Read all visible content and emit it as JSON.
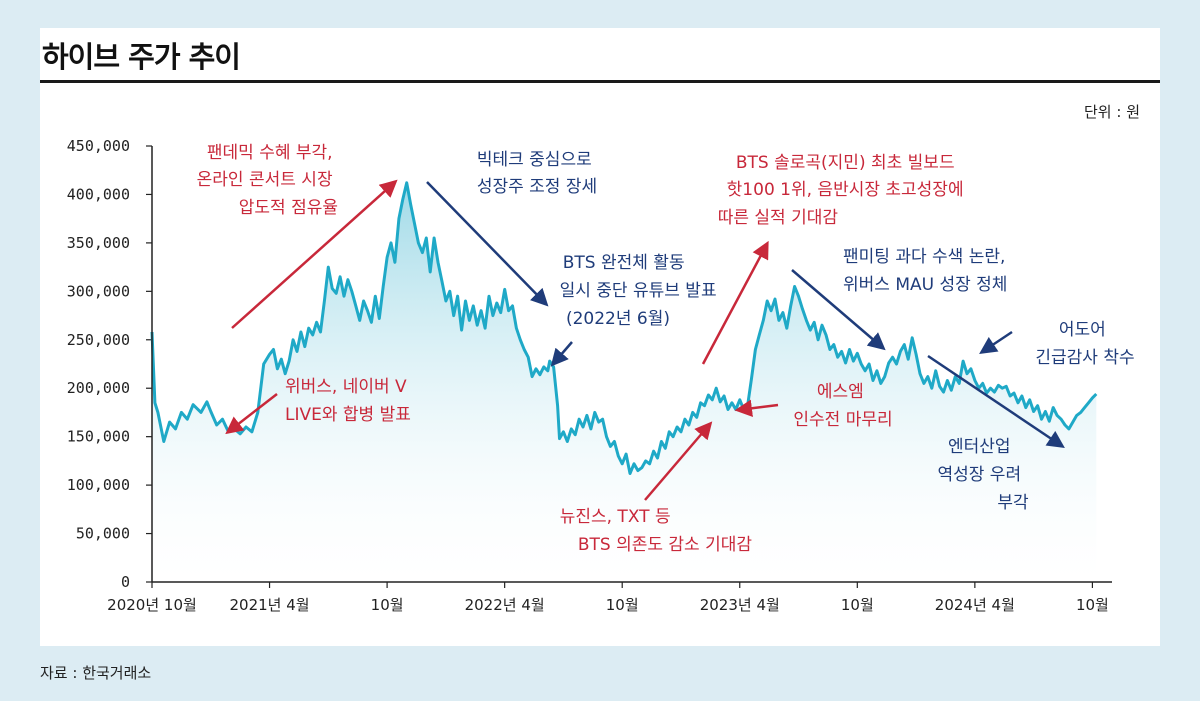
{
  "title": "하이브 주가 추이",
  "unit": "단위 : 원",
  "source": "자료 : 한국거래소",
  "colors": {
    "line": "#1fa9c7",
    "area_top": "#8fd3e3",
    "red": "#c8283a",
    "blue": "#1f3c7a",
    "axis": "#222222"
  },
  "chart_data": {
    "type": "area",
    "title": "하이브 주가 추이",
    "ylabel": "단위 : 원",
    "ylim": [
      0,
      450000
    ],
    "yticks": [
      0,
      50000,
      100000,
      150000,
      200000,
      250000,
      300000,
      350000,
      400000,
      450000
    ],
    "ytick_labels": [
      "0",
      "50,000",
      "100,000",
      "150,000",
      "200,000",
      "250,000",
      "300,000",
      "350,000",
      "400,000",
      "450,000"
    ],
    "x_range_months": [
      0,
      49
    ],
    "xticks": [
      {
        "m": 0,
        "label": "2020년 10월"
      },
      {
        "m": 6,
        "label": "2021년 4월"
      },
      {
        "m": 12,
        "label": "10월"
      },
      {
        "m": 18,
        "label": "2022년 4월"
      },
      {
        "m": 24,
        "label": "10월"
      },
      {
        "m": 30,
        "label": "2023년 4월"
      },
      {
        "m": 36,
        "label": "10월"
      },
      {
        "m": 42,
        "label": "2024년 4월"
      },
      {
        "m": 48,
        "label": "10월"
      }
    ],
    "series": [
      {
        "name": "하이브",
        "points": [
          [
            0.0,
            258000
          ],
          [
            0.15,
            185000
          ],
          [
            0.3,
            175000
          ],
          [
            0.6,
            145000
          ],
          [
            0.9,
            165000
          ],
          [
            1.2,
            158000
          ],
          [
            1.5,
            175000
          ],
          [
            1.8,
            168000
          ],
          [
            2.1,
            183000
          ],
          [
            2.5,
            175000
          ],
          [
            2.8,
            186000
          ],
          [
            3.0,
            176000
          ],
          [
            3.3,
            162000
          ],
          [
            3.6,
            168000
          ],
          [
            3.9,
            155000
          ],
          [
            4.2,
            158000
          ],
          [
            4.5,
            153000
          ],
          [
            4.8,
            160000
          ],
          [
            5.1,
            155000
          ],
          [
            5.4,
            175000
          ],
          [
            5.7,
            225000
          ],
          [
            6.0,
            235000
          ],
          [
            6.2,
            240000
          ],
          [
            6.4,
            220000
          ],
          [
            6.6,
            230000
          ],
          [
            6.8,
            215000
          ],
          [
            7.0,
            228000
          ],
          [
            7.2,
            250000
          ],
          [
            7.4,
            238000
          ],
          [
            7.6,
            258000
          ],
          [
            7.8,
            243000
          ],
          [
            8.0,
            262000
          ],
          [
            8.2,
            255000
          ],
          [
            8.4,
            268000
          ],
          [
            8.6,
            258000
          ],
          [
            8.8,
            290000
          ],
          [
            9.0,
            325000
          ],
          [
            9.2,
            303000
          ],
          [
            9.4,
            298000
          ],
          [
            9.6,
            315000
          ],
          [
            9.8,
            295000
          ],
          [
            10.0,
            312000
          ],
          [
            10.2,
            300000
          ],
          [
            10.4,
            285000
          ],
          [
            10.6,
            270000
          ],
          [
            10.8,
            290000
          ],
          [
            11.0,
            280000
          ],
          [
            11.2,
            268000
          ],
          [
            11.4,
            295000
          ],
          [
            11.6,
            272000
          ],
          [
            11.8,
            305000
          ],
          [
            12.0,
            335000
          ],
          [
            12.2,
            350000
          ],
          [
            12.4,
            330000
          ],
          [
            12.6,
            375000
          ],
          [
            12.8,
            395000
          ],
          [
            13.0,
            412000
          ],
          [
            13.2,
            390000
          ],
          [
            13.4,
            370000
          ],
          [
            13.6,
            350000
          ],
          [
            13.8,
            340000
          ],
          [
            14.0,
            355000
          ],
          [
            14.2,
            320000
          ],
          [
            14.4,
            355000
          ],
          [
            14.6,
            330000
          ],
          [
            14.8,
            310000
          ],
          [
            15.0,
            290000
          ],
          [
            15.2,
            300000
          ],
          [
            15.4,
            275000
          ],
          [
            15.6,
            295000
          ],
          [
            15.8,
            260000
          ],
          [
            16.0,
            290000
          ],
          [
            16.2,
            270000
          ],
          [
            16.4,
            285000
          ],
          [
            16.6,
            265000
          ],
          [
            16.8,
            280000
          ],
          [
            17.0,
            262000
          ],
          [
            17.2,
            295000
          ],
          [
            17.4,
            275000
          ],
          [
            17.6,
            288000
          ],
          [
            17.8,
            278000
          ],
          [
            18.0,
            302000
          ],
          [
            18.2,
            280000
          ],
          [
            18.4,
            285000
          ],
          [
            18.6,
            262000
          ],
          [
            18.8,
            250000
          ],
          [
            19.0,
            240000
          ],
          [
            19.2,
            232000
          ],
          [
            19.4,
            212000
          ],
          [
            19.6,
            220000
          ],
          [
            19.8,
            214000
          ],
          [
            20.0,
            222000
          ],
          [
            20.2,
            218000
          ],
          [
            20.3,
            228000
          ],
          [
            20.5,
            222000
          ],
          [
            20.7,
            182000
          ],
          [
            20.8,
            148000
          ],
          [
            21.0,
            155000
          ],
          [
            21.2,
            145000
          ],
          [
            21.4,
            158000
          ],
          [
            21.6,
            152000
          ],
          [
            21.8,
            168000
          ],
          [
            22.0,
            160000
          ],
          [
            22.2,
            172000
          ],
          [
            22.4,
            158000
          ],
          [
            22.6,
            175000
          ],
          [
            22.8,
            165000
          ],
          [
            23.0,
            168000
          ],
          [
            23.2,
            150000
          ],
          [
            23.4,
            140000
          ],
          [
            23.6,
            145000
          ],
          [
            23.8,
            130000
          ],
          [
            24.0,
            122000
          ],
          [
            24.2,
            132000
          ],
          [
            24.4,
            112000
          ],
          [
            24.6,
            122000
          ],
          [
            24.8,
            115000
          ],
          [
            25.0,
            118000
          ],
          [
            25.2,
            125000
          ],
          [
            25.4,
            122000
          ],
          [
            25.6,
            135000
          ],
          [
            25.8,
            128000
          ],
          [
            26.0,
            145000
          ],
          [
            26.2,
            138000
          ],
          [
            26.4,
            155000
          ],
          [
            26.6,
            150000
          ],
          [
            26.8,
            160000
          ],
          [
            27.0,
            155000
          ],
          [
            27.2,
            168000
          ],
          [
            27.4,
            162000
          ],
          [
            27.6,
            175000
          ],
          [
            27.8,
            170000
          ],
          [
            28.0,
            185000
          ],
          [
            28.2,
            182000
          ],
          [
            28.4,
            193000
          ],
          [
            28.6,
            188000
          ],
          [
            28.8,
            200000
          ],
          [
            29.0,
            186000
          ],
          [
            29.2,
            192000
          ],
          [
            29.4,
            178000
          ],
          [
            29.6,
            185000
          ],
          [
            29.8,
            178000
          ],
          [
            30.0,
            188000
          ],
          [
            30.2,
            178000
          ],
          [
            30.4,
            182000
          ],
          [
            30.6,
            210000
          ],
          [
            30.8,
            240000
          ],
          [
            31.0,
            255000
          ],
          [
            31.2,
            270000
          ],
          [
            31.4,
            290000
          ],
          [
            31.6,
            280000
          ],
          [
            31.8,
            292000
          ],
          [
            32.0,
            270000
          ],
          [
            32.2,
            278000
          ],
          [
            32.4,
            262000
          ],
          [
            32.6,
            285000
          ],
          [
            32.8,
            305000
          ],
          [
            33.0,
            295000
          ],
          [
            33.2,
            282000
          ],
          [
            33.4,
            270000
          ],
          [
            33.6,
            260000
          ],
          [
            33.8,
            268000
          ],
          [
            34.0,
            250000
          ],
          [
            34.2,
            265000
          ],
          [
            34.4,
            255000
          ],
          [
            34.6,
            240000
          ],
          [
            34.8,
            245000
          ],
          [
            35.0,
            232000
          ],
          [
            35.2,
            238000
          ],
          [
            35.4,
            226000
          ],
          [
            35.6,
            240000
          ],
          [
            35.8,
            228000
          ],
          [
            36.0,
            236000
          ],
          [
            36.2,
            225000
          ],
          [
            36.4,
            218000
          ],
          [
            36.6,
            225000
          ],
          [
            36.8,
            208000
          ],
          [
            37.0,
            218000
          ],
          [
            37.2,
            205000
          ],
          [
            37.4,
            212000
          ],
          [
            37.6,
            226000
          ],
          [
            37.8,
            232000
          ],
          [
            38.0,
            225000
          ],
          [
            38.2,
            238000
          ],
          [
            38.4,
            245000
          ],
          [
            38.6,
            230000
          ],
          [
            38.8,
            252000
          ],
          [
            39.0,
            235000
          ],
          [
            39.2,
            215000
          ],
          [
            39.4,
            205000
          ],
          [
            39.6,
            212000
          ],
          [
            39.8,
            200000
          ],
          [
            40.0,
            218000
          ],
          [
            40.2,
            202000
          ],
          [
            40.4,
            196000
          ],
          [
            40.6,
            208000
          ],
          [
            40.8,
            198000
          ],
          [
            41.0,
            212000
          ],
          [
            41.2,
            205000
          ],
          [
            41.4,
            228000
          ],
          [
            41.6,
            215000
          ],
          [
            41.8,
            220000
          ],
          [
            42.0,
            208000
          ],
          [
            42.2,
            200000
          ],
          [
            42.4,
            205000
          ],
          [
            42.6,
            195000
          ],
          [
            42.8,
            200000
          ],
          [
            43.0,
            196000
          ],
          [
            43.2,
            203000
          ],
          [
            43.4,
            200000
          ],
          [
            43.6,
            202000
          ],
          [
            43.8,
            192000
          ],
          [
            44.0,
            195000
          ],
          [
            44.2,
            185000
          ],
          [
            44.4,
            192000
          ],
          [
            44.6,
            180000
          ],
          [
            44.8,
            188000
          ],
          [
            45.0,
            176000
          ],
          [
            45.2,
            182000
          ],
          [
            45.4,
            168000
          ],
          [
            45.6,
            176000
          ],
          [
            45.8,
            166000
          ],
          [
            46.0,
            180000
          ],
          [
            46.2,
            172000
          ],
          [
            46.4,
            168000
          ],
          [
            46.6,
            162000
          ],
          [
            46.8,
            158000
          ],
          [
            47.0,
            165000
          ],
          [
            47.2,
            172000
          ],
          [
            47.4,
            175000
          ],
          [
            47.6,
            180000
          ],
          [
            47.8,
            185000
          ],
          [
            48.0,
            190000
          ],
          [
            48.2,
            194000
          ]
        ]
      }
    ],
    "annotations": [
      {
        "lines": [
          "팬데믹 수혜 부각,",
          "온라인 콘서트 시장",
          "압도적 점유율"
        ],
        "color": "red"
      },
      {
        "lines": [
          "빅테크 중심으로",
          "성장주 조정 장세"
        ],
        "color": "blue"
      },
      {
        "lines": [
          "BTS 완전체 활동",
          "일시 중단 유튜브 발표",
          "(2022년 6월)"
        ],
        "color": "blue"
      },
      {
        "lines": [
          "BTS 솔로곡(지민) 최초 빌보드",
          "핫100 1위, 음반시장 초고성장에",
          "따른 실적 기대감"
        ],
        "color": "red"
      },
      {
        "lines": [
          "팬미팅 과다 수색 논란,",
          "위버스 MAU 성장 정체"
        ],
        "color": "blue"
      },
      {
        "lines": [
          "어도어",
          "긴급감사 착수"
        ],
        "color": "blue"
      },
      {
        "lines": [
          "위버스, 네이버 V",
          "LIVE와 합병 발표"
        ],
        "color": "red"
      },
      {
        "lines": [
          "에스엠",
          "인수전 마무리"
        ],
        "color": "red"
      },
      {
        "lines": [
          "뉴진스, TXT 등",
          "BTS 의존도 감소 기대감"
        ],
        "color": "red"
      },
      {
        "lines": [
          "엔터산업",
          "역성장 우려",
          "부각"
        ],
        "color": "blue"
      }
    ]
  }
}
